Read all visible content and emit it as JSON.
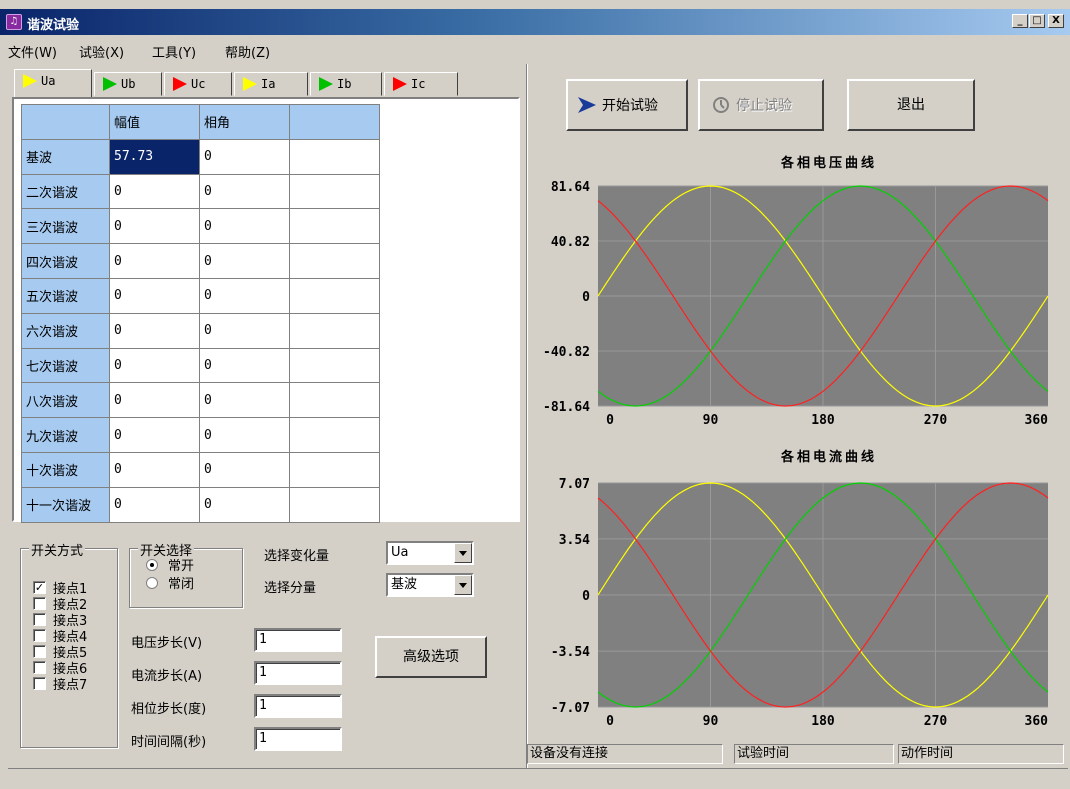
{
  "window": {
    "title": "谐波试验",
    "icon": "music-note-icon",
    "min": "_",
    "max": "□",
    "close": "X"
  },
  "menu": [
    "文件(W)",
    "试验(X)",
    "工具(Y)",
    "帮助(Z)"
  ],
  "tabs": [
    {
      "label": "Ua",
      "color": "#ffff00",
      "active": true
    },
    {
      "label": "Ub",
      "color": "#00c000"
    },
    {
      "label": "Uc",
      "color": "#ff0000"
    },
    {
      "label": "Ia",
      "color": "#ffff00"
    },
    {
      "label": "Ib",
      "color": "#00c000"
    },
    {
      "label": "Ic",
      "color": "#ff0000"
    }
  ],
  "grid": {
    "headers": [
      "",
      "幅值",
      "相角",
      ""
    ],
    "rows": [
      {
        "name": "基波",
        "amp": "57.73",
        "ang": "0"
      },
      {
        "name": "二次谐波",
        "amp": "0",
        "ang": "0"
      },
      {
        "name": "三次谐波",
        "amp": "0",
        "ang": "0"
      },
      {
        "name": "四次谐波",
        "amp": "0",
        "ang": "0"
      },
      {
        "name": "五次谐波",
        "amp": "0",
        "ang": "0"
      },
      {
        "name": "六次谐波",
        "amp": "0",
        "ang": "0"
      },
      {
        "name": "七次谐波",
        "amp": "0",
        "ang": "0"
      },
      {
        "name": "八次谐波",
        "amp": "0",
        "ang": "0"
      },
      {
        "name": "九次谐波",
        "amp": "0",
        "ang": "0"
      },
      {
        "name": "十次谐波",
        "amp": "0",
        "ang": "0"
      },
      {
        "name": "十一次谐波",
        "amp": "0",
        "ang": "0"
      }
    ]
  },
  "switch_mode": {
    "title": "开关方式",
    "contacts": [
      {
        "label": "接点1",
        "checked": true
      },
      {
        "label": "接点2",
        "checked": false
      },
      {
        "label": "接点3",
        "checked": false
      },
      {
        "label": "接点4",
        "checked": false
      },
      {
        "label": "接点5",
        "checked": false
      },
      {
        "label": "接点6",
        "checked": false
      },
      {
        "label": "接点7",
        "checked": false
      }
    ]
  },
  "switch_select": {
    "title": "开关选择",
    "options": [
      "常开",
      "常闭"
    ],
    "selected": 0
  },
  "select_variable": {
    "label": "选择变化量",
    "value": "Ua"
  },
  "select_component": {
    "label": "选择分量",
    "value": "基波"
  },
  "steps": [
    {
      "label": "电压步长(V)",
      "value": "1"
    },
    {
      "label": "电流步长(A)",
      "value": "1"
    },
    {
      "label": "相位步长(度)",
      "value": "1"
    },
    {
      "label": "时间间隔(秒)",
      "value": "1"
    }
  ],
  "buttons": {
    "advanced": "高级选项",
    "start": "开始试验",
    "stop": "停止试验",
    "exit": "退出"
  },
  "chart_data": [
    {
      "type": "line",
      "title": "各相电压曲线",
      "xlim": [
        0,
        360
      ],
      "x_ticks": [
        "0",
        "90",
        "180",
        "270",
        "360"
      ],
      "ylim": [
        -81.64,
        81.64
      ],
      "y_ticks": [
        "81.64",
        "40.82",
        "0",
        "-40.82",
        "-81.64"
      ],
      "amplitude": 81.64,
      "series": [
        {
          "color": "#ffff00",
          "phase": 0
        },
        {
          "color": "#00d000",
          "phase": -120
        },
        {
          "color": "#ff2020",
          "phase": 120
        }
      ]
    },
    {
      "type": "line",
      "title": "各相电流曲线",
      "xlim": [
        0,
        360
      ],
      "x_ticks": [
        "0",
        "90",
        "180",
        "270",
        "360"
      ],
      "ylim": [
        -7.07,
        7.07
      ],
      "y_ticks": [
        "7.07",
        "3.54",
        "0",
        "-3.54",
        "-7.07"
      ],
      "amplitude": 7.07,
      "series": [
        {
          "color": "#ffff00",
          "phase": 0
        },
        {
          "color": "#00d000",
          "phase": -120
        },
        {
          "color": "#ff2020",
          "phase": 120
        }
      ]
    }
  ],
  "status": [
    "设备没有连接",
    "试验时间",
    "动作时间"
  ]
}
